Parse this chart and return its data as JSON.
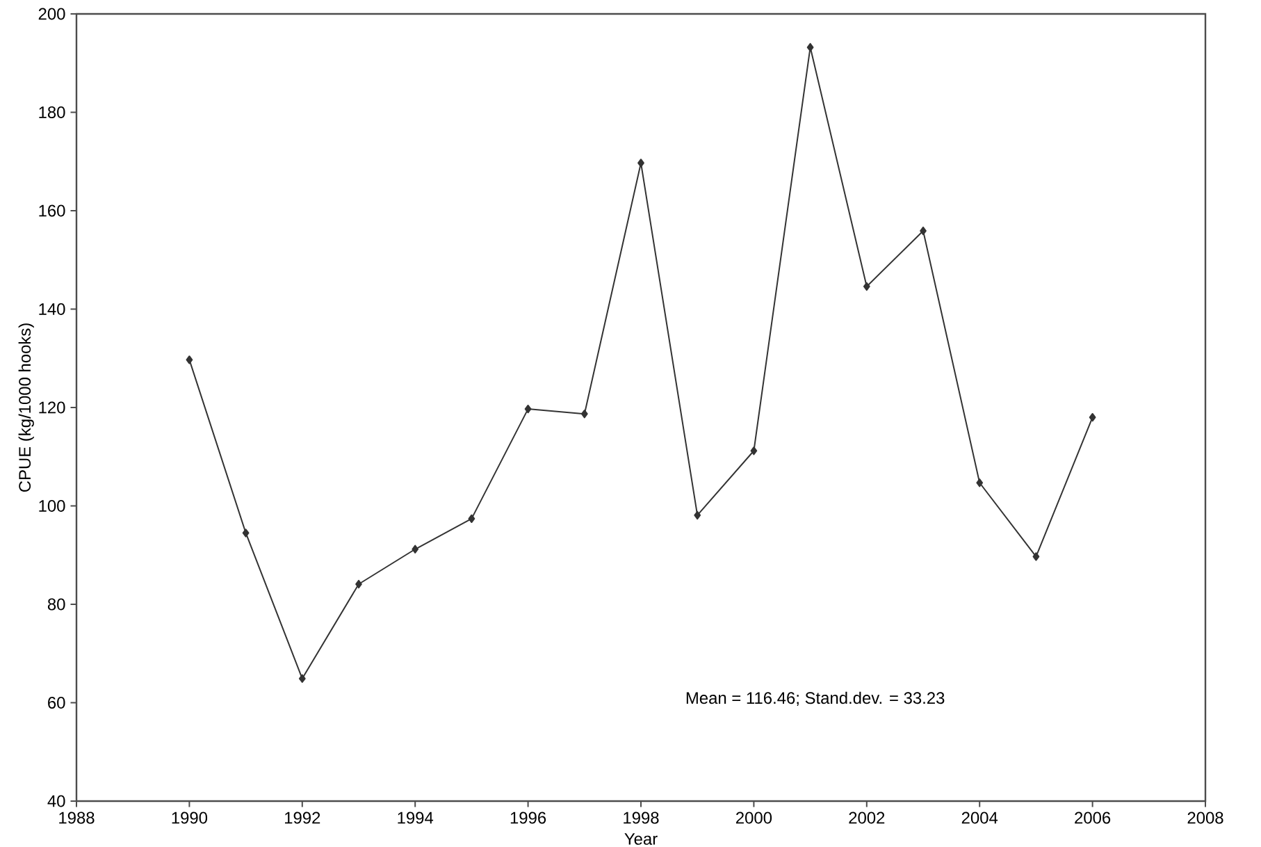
{
  "chart_data": {
    "type": "line",
    "xlabel": "Year",
    "ylabel": "CPUE (kg/1000 hooks)",
    "x": [
      1990,
      1991,
      1992,
      1993,
      1994,
      1995,
      1996,
      1997,
      1998,
      1999,
      2000,
      2001,
      2002,
      2003,
      2004,
      2005,
      2006
    ],
    "series": [
      {
        "color": "#333333",
        "values": [
          129.7,
          94.5,
          64.9,
          84.1,
          91.2,
          97.4,
          119.7,
          118.7,
          169.7,
          98.1,
          111.2,
          193.2,
          144.6,
          155.9,
          104.7,
          89.7,
          118
        ]
      }
    ],
    "xlim": [
      1988,
      2008
    ],
    "xticks": [
      1988,
      1990,
      1992,
      1994,
      1996,
      1998,
      2000,
      2002,
      2004,
      2006,
      2008
    ],
    "ylim": [
      40,
      200
    ],
    "yticks": [
      40,
      60,
      80,
      100,
      120,
      140,
      160,
      180,
      200
    ],
    "marker": "diamond",
    "line_style": "solid",
    "annotations": [
      "Mean = 116.46; Stand.dev. = 33.23"
    ]
  }
}
